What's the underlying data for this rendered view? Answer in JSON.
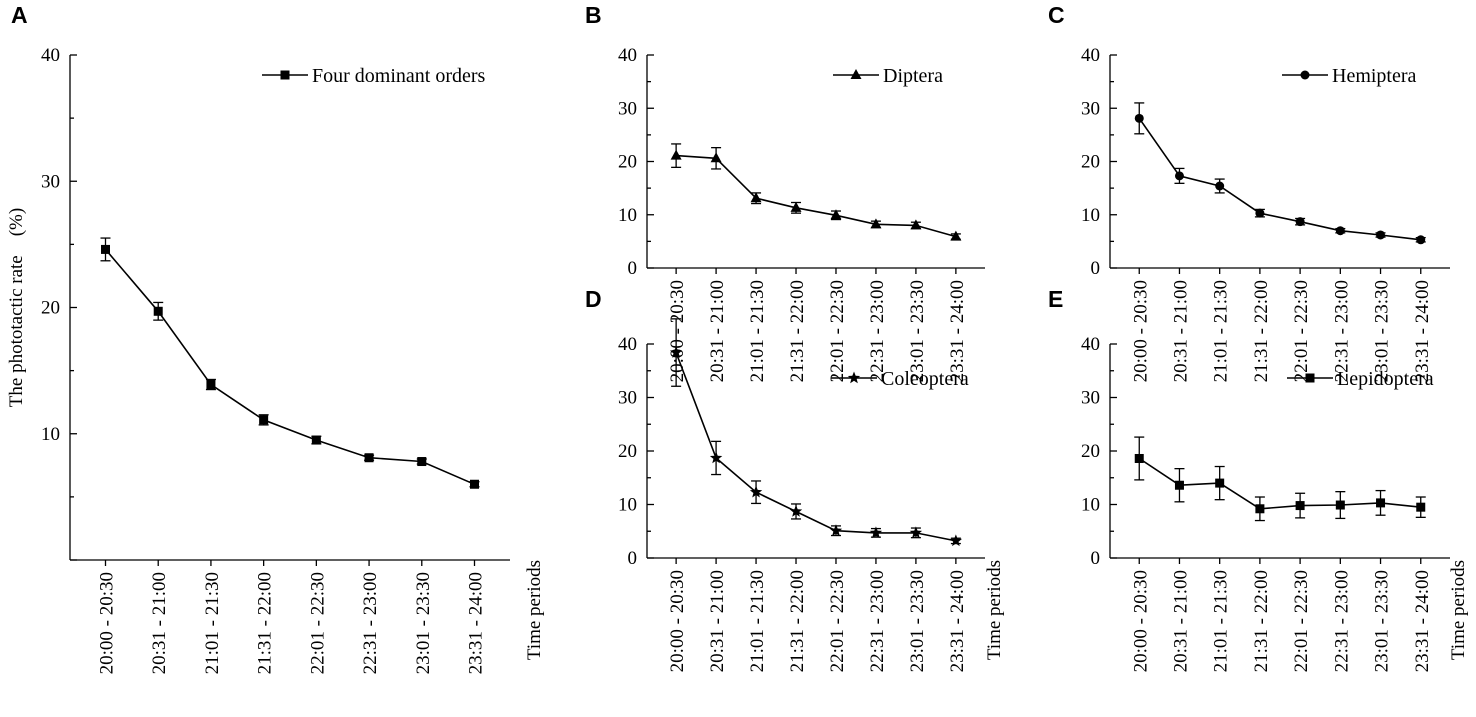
{
  "figure": {
    "ylabel": "The phototactic rate　(%)",
    "xlabel": "Time periods"
  },
  "chart_data": [
    {
      "panel": "A",
      "type": "line",
      "legend": "Four dominant orders",
      "marker": "square",
      "categories": [
        "20:00 - 20:30",
        "20:31 - 21:00",
        "21:01 - 21:30",
        "21:31 - 22:00",
        "22:01 - 22:30",
        "22:31 - 23:00",
        "23:01 - 23:30",
        "23:31 - 24:00"
      ],
      "values": [
        24.6,
        19.7,
        13.9,
        11.1,
        9.5,
        8.1,
        7.8,
        6.0
      ],
      "errors": [
        0.9,
        0.7,
        0.4,
        0.4,
        0.3,
        0.2,
        0.2,
        0.2
      ],
      "ylim": [
        0,
        40
      ],
      "yticks": [
        "10",
        "20",
        "30",
        "40"
      ],
      "ylabel": "The phototactic rate　(%)",
      "xlabel": "Time periods"
    },
    {
      "panel": "B",
      "type": "line",
      "legend": "Diptera",
      "marker": "triangle",
      "categories": [
        "20:00 - 20:30",
        "20:31 - 21:00",
        "21:01 - 21:30",
        "21:31 - 22:00",
        "22:01 - 22:30",
        "22:31 - 23:00",
        "23:01 - 23:30",
        "23:31 - 24:00"
      ],
      "values": [
        21.1,
        20.6,
        13.1,
        11.3,
        9.9,
        8.2,
        8.0,
        5.9
      ],
      "errors": [
        2.2,
        2.0,
        1.0,
        1.0,
        0.8,
        0.6,
        0.6,
        0.5
      ],
      "ylim": [
        0,
        40
      ],
      "yticks": [
        "0",
        "10",
        "20",
        "30",
        "40"
      ]
    },
    {
      "panel": "C",
      "type": "line",
      "legend": "Hemiptera",
      "marker": "circle",
      "categories": [
        "20:00 - 20:30",
        "20:31 - 21:00",
        "21:01 - 21:30",
        "21:31 - 22:00",
        "22:01 - 22:30",
        "22:31 - 23:00",
        "23:01 - 23:30",
        "23:31 - 24:00"
      ],
      "values": [
        28.1,
        17.3,
        15.4,
        10.3,
        8.7,
        7.0,
        6.2,
        5.3
      ],
      "errors": [
        2.9,
        1.4,
        1.3,
        0.7,
        0.6,
        0.4,
        0.4,
        0.4
      ],
      "ylim": [
        0,
        40
      ],
      "yticks": [
        "0",
        "10",
        "20",
        "30",
        "40"
      ]
    },
    {
      "panel": "D",
      "type": "line",
      "legend": "Coleoptera",
      "marker": "star",
      "categories": [
        "20:00 - 20:30",
        "20:31 - 21:00",
        "21:01 - 21:30",
        "21:31 - 22:00",
        "22:01 - 22:30",
        "22:31 - 23:00",
        "23:01 - 23:30",
        "23:31 - 24:00"
      ],
      "values": [
        38.4,
        18.7,
        12.3,
        8.7,
        5.1,
        4.7,
        4.7,
        3.2
      ],
      "errors": [
        6.3,
        3.1,
        2.1,
        1.4,
        0.9,
        0.8,
        0.9,
        0.5
      ],
      "ylim": [
        0,
        40
      ],
      "yticks": [
        "0",
        "10",
        "20",
        "30",
        "40"
      ]
    },
    {
      "panel": "E",
      "type": "line",
      "legend": "Lepidoptera",
      "marker": "square",
      "categories": [
        "20:00 - 20:30",
        "20:31 - 21:00",
        "21:01 - 21:30",
        "21:31 - 22:00",
        "22:01 - 22:30",
        "22:31 - 23:00",
        "23:01 - 23:30",
        "23:31 - 24:00"
      ],
      "values": [
        18.6,
        13.6,
        14.0,
        9.2,
        9.8,
        9.9,
        10.3,
        9.5
      ],
      "errors": [
        4.0,
        3.1,
        3.1,
        2.2,
        2.3,
        2.5,
        2.3,
        1.9
      ],
      "ylim": [
        0,
        40
      ],
      "yticks": [
        "0",
        "10",
        "20",
        "30",
        "40"
      ]
    }
  ]
}
